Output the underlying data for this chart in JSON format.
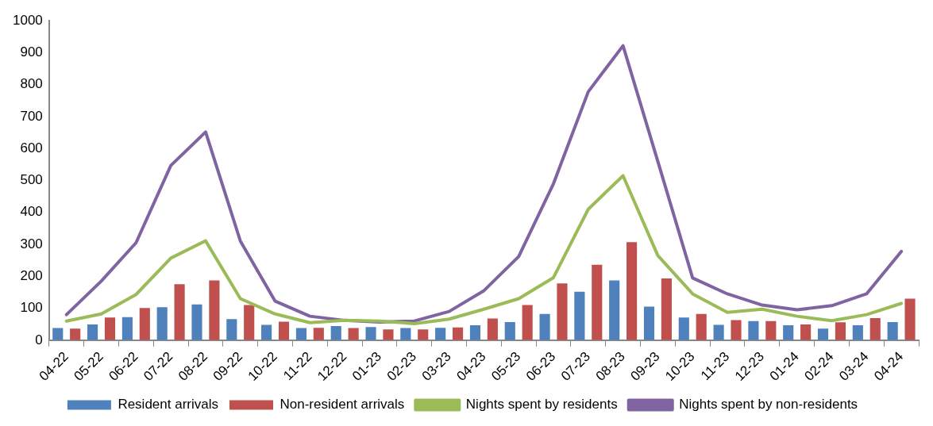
{
  "chart_data": {
    "type": "bar",
    "categories": [
      "04-22",
      "05-22",
      "06-22",
      "07-22",
      "08-22",
      "09-22",
      "10-22",
      "11-22",
      "12-22",
      "01-23",
      "02-23",
      "03-23",
      "04-23",
      "05-23",
      "06-23",
      "07-23",
      "08-23",
      "09-23",
      "10-23",
      "11-23",
      "12-23",
      "01-24",
      "02-24",
      "03-24",
      "04-24"
    ],
    "series": [
      {
        "name": "Resident arrivals",
        "color": "#4f81bd",
        "values": [
          38,
          49,
          72,
          103,
          112,
          66,
          48,
          38,
          44,
          41,
          38,
          39,
          47,
          57,
          82,
          152,
          187,
          105,
          71,
          48,
          60,
          47,
          36,
          47,
          57
        ]
      },
      {
        "name": "Non-resident arrivals",
        "color": "#c0504d",
        "values": [
          36,
          71,
          101,
          175,
          187,
          110,
          58,
          39,
          38,
          34,
          34,
          40,
          68,
          110,
          178,
          236,
          307,
          193,
          82,
          63,
          60,
          49,
          56,
          69,
          130
        ]
      },
      {
        "name": "Nights spent by residents",
        "type": "line",
        "color": "#9bbb59",
        "values": [
          60,
          82,
          143,
          257,
          311,
          130,
          82,
          55,
          62,
          60,
          52,
          66,
          97,
          130,
          196,
          410,
          515,
          265,
          145,
          87,
          97,
          75,
          61,
          80,
          115
        ]
      },
      {
        "name": "Nights spent by non-residents",
        "type": "line",
        "color": "#8064a2",
        "values": [
          80,
          185,
          305,
          547,
          652,
          310,
          122,
          75,
          62,
          57,
          60,
          90,
          155,
          262,
          490,
          778,
          922,
          560,
          195,
          145,
          110,
          95,
          108,
          145,
          278
        ]
      }
    ],
    "ylim": [
      0,
      1000
    ],
    "yticks": [
      0,
      100,
      200,
      300,
      400,
      500,
      600,
      700,
      800,
      900,
      1000
    ],
    "grid": false,
    "legend": "bottom",
    "marker": "none"
  }
}
